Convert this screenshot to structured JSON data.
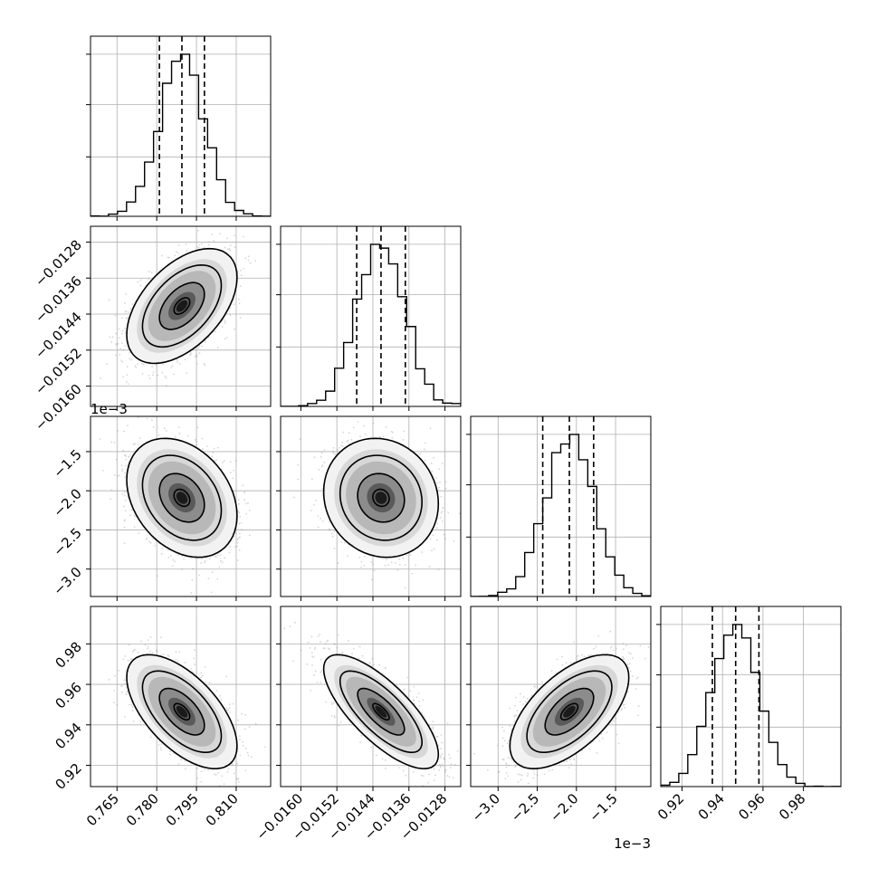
{
  "chart_data": {
    "type": "corner",
    "description_free": true,
    "parameters": [
      {
        "range": [
          0.755,
          0.823
        ],
        "ticks": [
          0.765,
          0.78,
          0.795,
          0.81
        ],
        "tick_labels": [
          "0.765",
          "0.780",
          "0.795",
          "0.810"
        ],
        "offset_text": "",
        "mean": 0.7895,
        "std": 0.0085,
        "quantiles": [
          0.781,
          0.7895,
          0.798
        ]
      },
      {
        "range": [
          -0.01645,
          -0.01245
        ],
        "ticks": [
          -0.016,
          -0.0152,
          -0.0144,
          -0.0136,
          -0.0128
        ],
        "tick_labels": [
          "−0.0160",
          "−0.0152",
          "−0.0144",
          "−0.0136",
          "−0.0128"
        ],
        "offset_text": "",
        "mean": -0.01422,
        "std": 0.00052,
        "quantiles": [
          -0.01476,
          -0.01422,
          -0.01368
        ]
      },
      {
        "range": [
          -0.00335,
          -0.00105
        ],
        "ticks": [
          -0.003,
          -0.0025,
          -0.002,
          -0.0015
        ],
        "tick_labels": [
          "−3.0",
          "−2.5",
          "−2.0",
          "−1.5"
        ],
        "offset_text": "1e−3",
        "mean": -0.00209,
        "std": 0.00031,
        "quantiles": [
          -0.00243,
          -0.00209,
          -0.00178
        ]
      },
      {
        "range": [
          0.9095,
          0.9985
        ],
        "ticks": [
          0.92,
          0.94,
          0.96,
          0.98
        ],
        "tick_labels": [
          "0.92",
          "0.94",
          "0.96",
          "0.98"
        ],
        "offset_text": "",
        "mean": 0.9465,
        "std": 0.0115,
        "quantiles": [
          0.935,
          0.9465,
          0.958
        ]
      }
    ],
    "correlations": [
      [
        0,
        1,
        0.5
      ],
      [
        0,
        2,
        -0.3
      ],
      [
        1,
        2,
        -0.1
      ],
      [
        0,
        3,
        -0.6
      ],
      [
        1,
        3,
        -0.75
      ],
      [
        2,
        3,
        0.6
      ]
    ],
    "histogram_bins": 20,
    "grid": true,
    "quantile_line_style": "dashed"
  }
}
